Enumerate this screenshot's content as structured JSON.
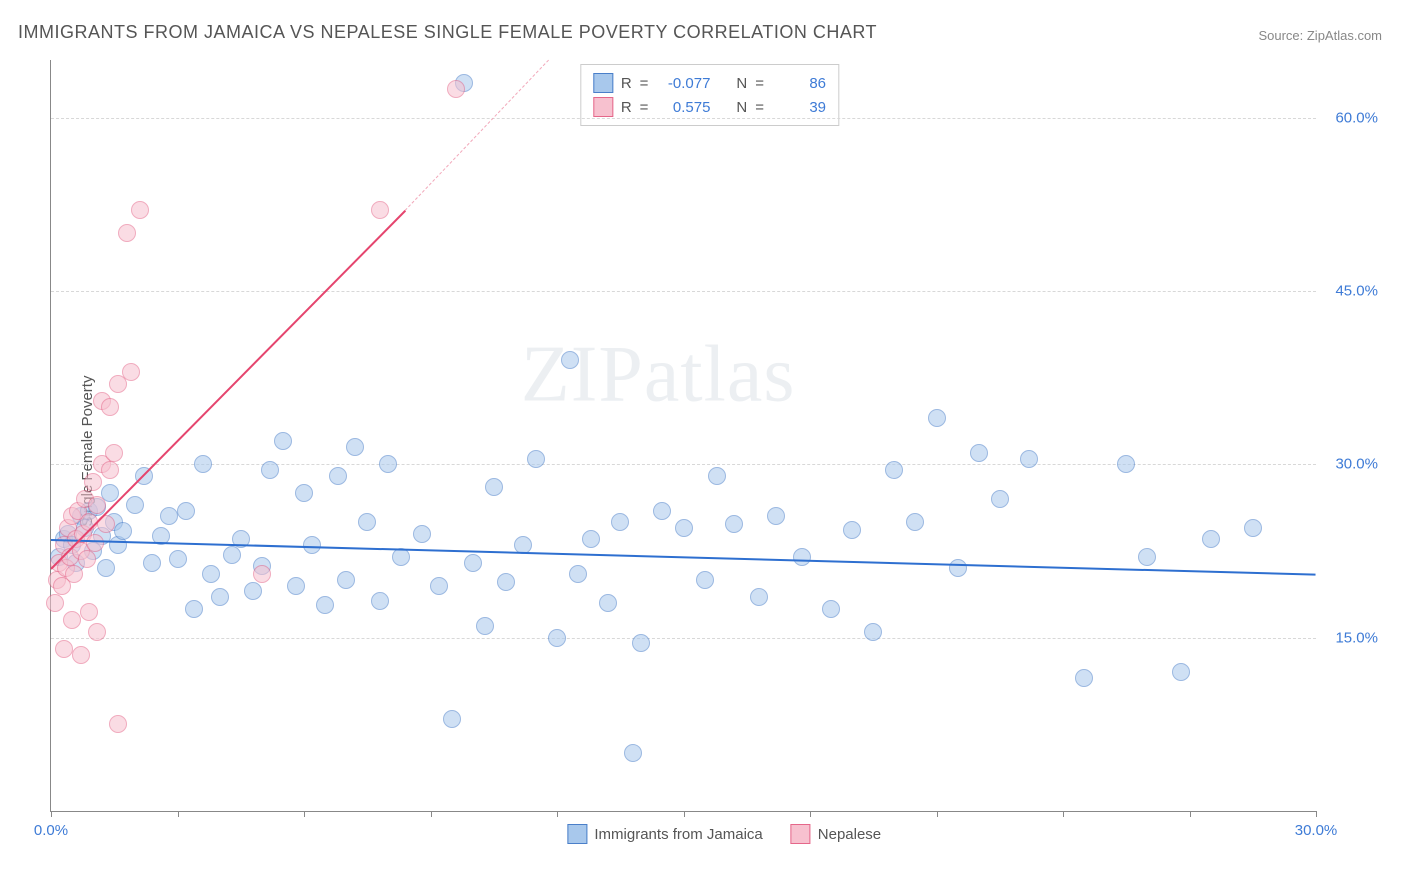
{
  "title": "IMMIGRANTS FROM JAMAICA VS NEPALESE SINGLE FEMALE POVERTY CORRELATION CHART",
  "source": "Source: ZipAtlas.com",
  "watermark": "ZIPatlas",
  "chart": {
    "type": "scatter",
    "background_color": "#ffffff",
    "grid_color": "#d8d8d8",
    "axis_color": "#888888",
    "y_axis_label": "Single Female Poverty",
    "xlim": [
      0,
      30
    ],
    "ylim": [
      0,
      65
    ],
    "y_ticks": [
      15,
      30,
      45,
      60
    ],
    "y_tick_labels": [
      "15.0%",
      "30.0%",
      "45.0%",
      "60.0%"
    ],
    "y_tick_color": "#3e7bd6",
    "x_ticks": [
      0,
      3,
      6,
      9,
      12,
      15,
      18,
      21,
      24,
      27,
      30
    ],
    "x_tick_labels": {
      "0": "0.0%",
      "30": "30.0%"
    },
    "x_tick_color": "#3e7bd6",
    "label_fontsize": 15,
    "title_fontsize": 18,
    "marker_radius": 9,
    "marker_opacity": 0.55,
    "series": [
      {
        "name": "Immigrants from Jamaica",
        "fill_color": "#a8c8ec",
        "stroke_color": "#4a7fc9",
        "R": "-0.077",
        "N": "86",
        "trend": {
          "x1": 0,
          "y1": 23.5,
          "x2": 30,
          "y2": 20.5,
          "color": "#2e6fd0",
          "width": 2
        },
        "points": [
          [
            0.2,
            22
          ],
          [
            0.3,
            23.5
          ],
          [
            0.4,
            24
          ],
          [
            0.5,
            23
          ],
          [
            0.6,
            21.5
          ],
          [
            0.7,
            25.5
          ],
          [
            0.8,
            24.5
          ],
          [
            0.9,
            26
          ],
          [
            1.0,
            22.5
          ],
          [
            1.1,
            26.3
          ],
          [
            1.2,
            23.8
          ],
          [
            1.3,
            21
          ],
          [
            1.4,
            27.5
          ],
          [
            1.5,
            25
          ],
          [
            1.6,
            23
          ],
          [
            1.7,
            24.2
          ],
          [
            2.0,
            26.5
          ],
          [
            2.2,
            29
          ],
          [
            2.4,
            21.5
          ],
          [
            2.6,
            23.8
          ],
          [
            2.8,
            25.5
          ],
          [
            3.0,
            21.8
          ],
          [
            3.2,
            26
          ],
          [
            3.4,
            17.5
          ],
          [
            3.6,
            30
          ],
          [
            3.8,
            20.5
          ],
          [
            4.0,
            18.5
          ],
          [
            4.3,
            22.2
          ],
          [
            4.5,
            23.5
          ],
          [
            4.8,
            19
          ],
          [
            5.0,
            21.2
          ],
          [
            5.2,
            29.5
          ],
          [
            5.5,
            32
          ],
          [
            5.8,
            19.5
          ],
          [
            6.0,
            27.5
          ],
          [
            6.2,
            23
          ],
          [
            6.5,
            17.8
          ],
          [
            6.8,
            29
          ],
          [
            7.0,
            20
          ],
          [
            7.2,
            31.5
          ],
          [
            7.5,
            25
          ],
          [
            7.8,
            18.2
          ],
          [
            8.0,
            30
          ],
          [
            8.3,
            22
          ],
          [
            8.8,
            24
          ],
          [
            9.2,
            19.5
          ],
          [
            9.5,
            8
          ],
          [
            9.8,
            63
          ],
          [
            10.0,
            21.5
          ],
          [
            10.3,
            16
          ],
          [
            10.5,
            28
          ],
          [
            10.8,
            19.8
          ],
          [
            11.2,
            23
          ],
          [
            11.5,
            30.5
          ],
          [
            12.0,
            15
          ],
          [
            12.3,
            39
          ],
          [
            12.5,
            20.5
          ],
          [
            12.8,
            23.5
          ],
          [
            13.2,
            18
          ],
          [
            13.5,
            25
          ],
          [
            13.8,
            5
          ],
          [
            14.0,
            14.5
          ],
          [
            14.5,
            26
          ],
          [
            15.0,
            24.5
          ],
          [
            15.5,
            20
          ],
          [
            15.8,
            29
          ],
          [
            16.2,
            24.8
          ],
          [
            16.8,
            18.5
          ],
          [
            17.2,
            25.5
          ],
          [
            17.8,
            22
          ],
          [
            18.5,
            17.5
          ],
          [
            19.0,
            24.3
          ],
          [
            19.5,
            15.5
          ],
          [
            20.0,
            29.5
          ],
          [
            20.5,
            25
          ],
          [
            21.0,
            34
          ],
          [
            21.5,
            21
          ],
          [
            22.0,
            31
          ],
          [
            22.5,
            27
          ],
          [
            23.2,
            30.5
          ],
          [
            24.5,
            11.5
          ],
          [
            25.5,
            30
          ],
          [
            26.0,
            22
          ],
          [
            26.8,
            12
          ],
          [
            27.5,
            23.5
          ],
          [
            28.5,
            24.5
          ]
        ]
      },
      {
        "name": "Nepalese",
        "fill_color": "#f7c1cf",
        "stroke_color": "#e5678a",
        "R": "0.575",
        "N": "39",
        "trend_solid": {
          "x1": 0,
          "y1": 21,
          "x2": 8.4,
          "y2": 52,
          "color": "#e5456e",
          "width": 2
        },
        "trend_dashed": {
          "x1": 8.4,
          "y1": 52,
          "x2": 11.8,
          "y2": 65,
          "color": "#f2a8ba",
          "width": 1
        },
        "points": [
          [
            0.1,
            18
          ],
          [
            0.15,
            20
          ],
          [
            0.2,
            21.5
          ],
          [
            0.25,
            19.5
          ],
          [
            0.3,
            23
          ],
          [
            0.35,
            21
          ],
          [
            0.4,
            24.5
          ],
          [
            0.45,
            22
          ],
          [
            0.5,
            25.5
          ],
          [
            0.55,
            20.5
          ],
          [
            0.6,
            23.5
          ],
          [
            0.65,
            26
          ],
          [
            0.7,
            22.5
          ],
          [
            0.75,
            24
          ],
          [
            0.8,
            27
          ],
          [
            0.85,
            21.8
          ],
          [
            0.9,
            25
          ],
          [
            1.0,
            28.5
          ],
          [
            1.05,
            23.2
          ],
          [
            1.1,
            26.5
          ],
          [
            1.2,
            30
          ],
          [
            1.3,
            24.8
          ],
          [
            1.4,
            29.5
          ],
          [
            1.5,
            31
          ],
          [
            0.3,
            14
          ],
          [
            0.5,
            16.5
          ],
          [
            0.7,
            13.5
          ],
          [
            0.9,
            17.2
          ],
          [
            1.1,
            15.5
          ],
          [
            1.6,
            7.5
          ],
          [
            1.2,
            35.5
          ],
          [
            1.4,
            35
          ],
          [
            1.6,
            37
          ],
          [
            1.9,
            38
          ],
          [
            2.1,
            52
          ],
          [
            1.8,
            50
          ],
          [
            5.0,
            20.5
          ],
          [
            7.8,
            52
          ],
          [
            9.6,
            62.5
          ]
        ]
      }
    ],
    "legend_top_labels": {
      "R": "R",
      "N": "N",
      "eq": "="
    },
    "legend_bottom": [
      {
        "label": "Immigrants from Jamaica",
        "fill": "#a8c8ec",
        "stroke": "#4a7fc9"
      },
      {
        "label": "Nepalese",
        "fill": "#f7c1cf",
        "stroke": "#e5678a"
      }
    ]
  }
}
